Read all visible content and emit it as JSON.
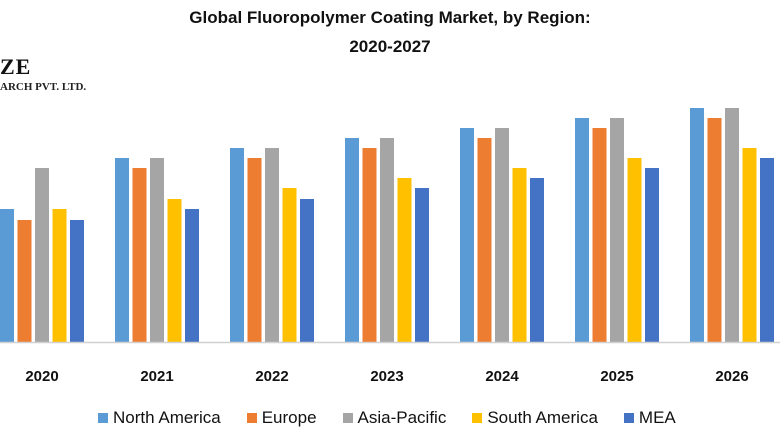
{
  "chart_data": {
    "type": "bar",
    "title": [
      "Global Fluoropolymer Coating Market, by Region:",
      "2020-2027"
    ],
    "xlabel": "",
    "ylabel": "",
    "ylim": [
      0,
      24
    ],
    "grid": false,
    "legend_placement": "bottom",
    "categories": [
      "2020",
      "2021",
      "2022",
      "2023",
      "2024",
      "2025",
      "2026"
    ],
    "series": [
      {
        "name": "North America",
        "color": "#5B9BD5",
        "values": [
          13.3,
          18.4,
          19.4,
          20.4,
          21.4,
          22.4,
          23.4
        ]
      },
      {
        "name": "Europe",
        "color": "#ED7D31",
        "values": [
          12.2,
          17.4,
          18.4,
          19.4,
          20.4,
          21.4,
          22.4
        ]
      },
      {
        "name": "Asia-Pacific",
        "color": "#A5A5A5",
        "values": [
          17.4,
          18.4,
          19.4,
          20.4,
          21.4,
          22.4,
          23.4
        ]
      },
      {
        "name": "South America",
        "color": "#FFC000",
        "values": [
          13.3,
          14.3,
          15.4,
          16.4,
          17.4,
          18.4,
          19.4
        ]
      },
      {
        "name": "MEA",
        "color": "#4472C4",
        "values": [
          12.2,
          13.3,
          14.3,
          15.4,
          16.4,
          17.4,
          18.4
        ]
      }
    ]
  },
  "logo": {
    "line1": "ZE",
    "line2": "ARCH PVT. LTD."
  }
}
